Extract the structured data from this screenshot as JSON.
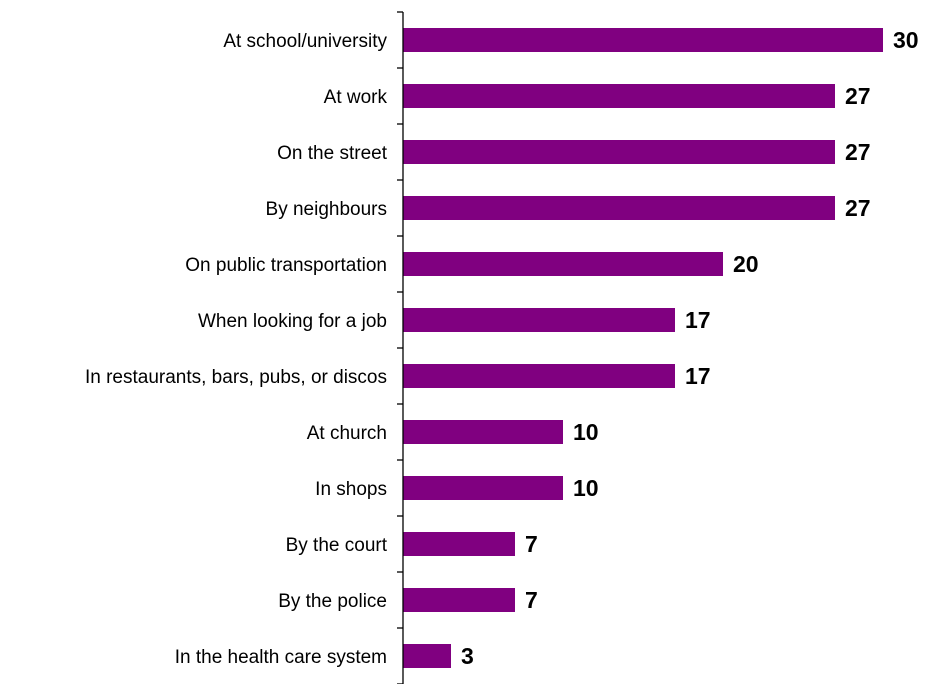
{
  "chart_data": {
    "type": "bar",
    "orientation": "horizontal",
    "title": "",
    "xlabel": "",
    "ylabel": "",
    "categories": [
      "At school/university",
      "At work",
      "On the street",
      "By neighbours",
      "On public transportation",
      "When looking for a job",
      "In restaurants, bars, pubs, or discos",
      "At church",
      "In shops",
      "By the court",
      "By the police",
      "In the health care system"
    ],
    "values": [
      30,
      27,
      27,
      27,
      20,
      17,
      17,
      10,
      10,
      7,
      7,
      3
    ],
    "value_labels": [
      "30",
      "27",
      "27",
      "27",
      "20",
      "17",
      "17",
      "10",
      "10",
      "7",
      "7",
      "3"
    ],
    "xlim": [
      0,
      30
    ],
    "grid": false,
    "legend": "none",
    "bar_color": "#800080",
    "axis_color": "#000000"
  }
}
